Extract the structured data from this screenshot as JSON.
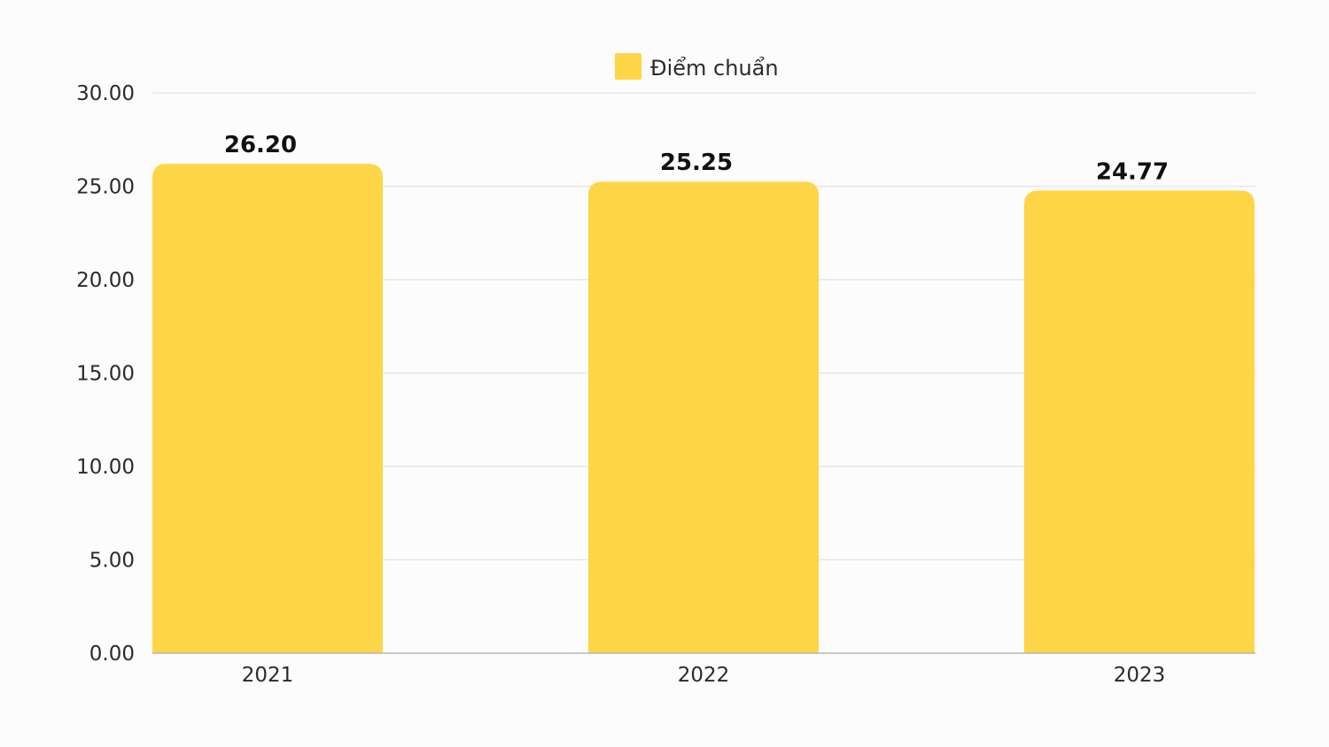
{
  "chart_data": {
    "type": "bar",
    "categories": [
      "2021",
      "2022",
      "2023"
    ],
    "series": [
      {
        "name": "Điểm chuẩn",
        "values": [
          26.2,
          25.25,
          24.77
        ]
      }
    ],
    "data_labels": [
      "26.20",
      "25.25",
      "24.77"
    ],
    "y_ticks": [
      "0.00",
      "5.00",
      "10.00",
      "15.00",
      "20.00",
      "25.00",
      "30.00"
    ],
    "ylim": [
      0,
      30
    ],
    "grid": true,
    "legend_position": "top-center",
    "colors": {
      "bar": "#fed546",
      "grid": "#e3e3e6",
      "axis": "#b5b5bb"
    }
  }
}
